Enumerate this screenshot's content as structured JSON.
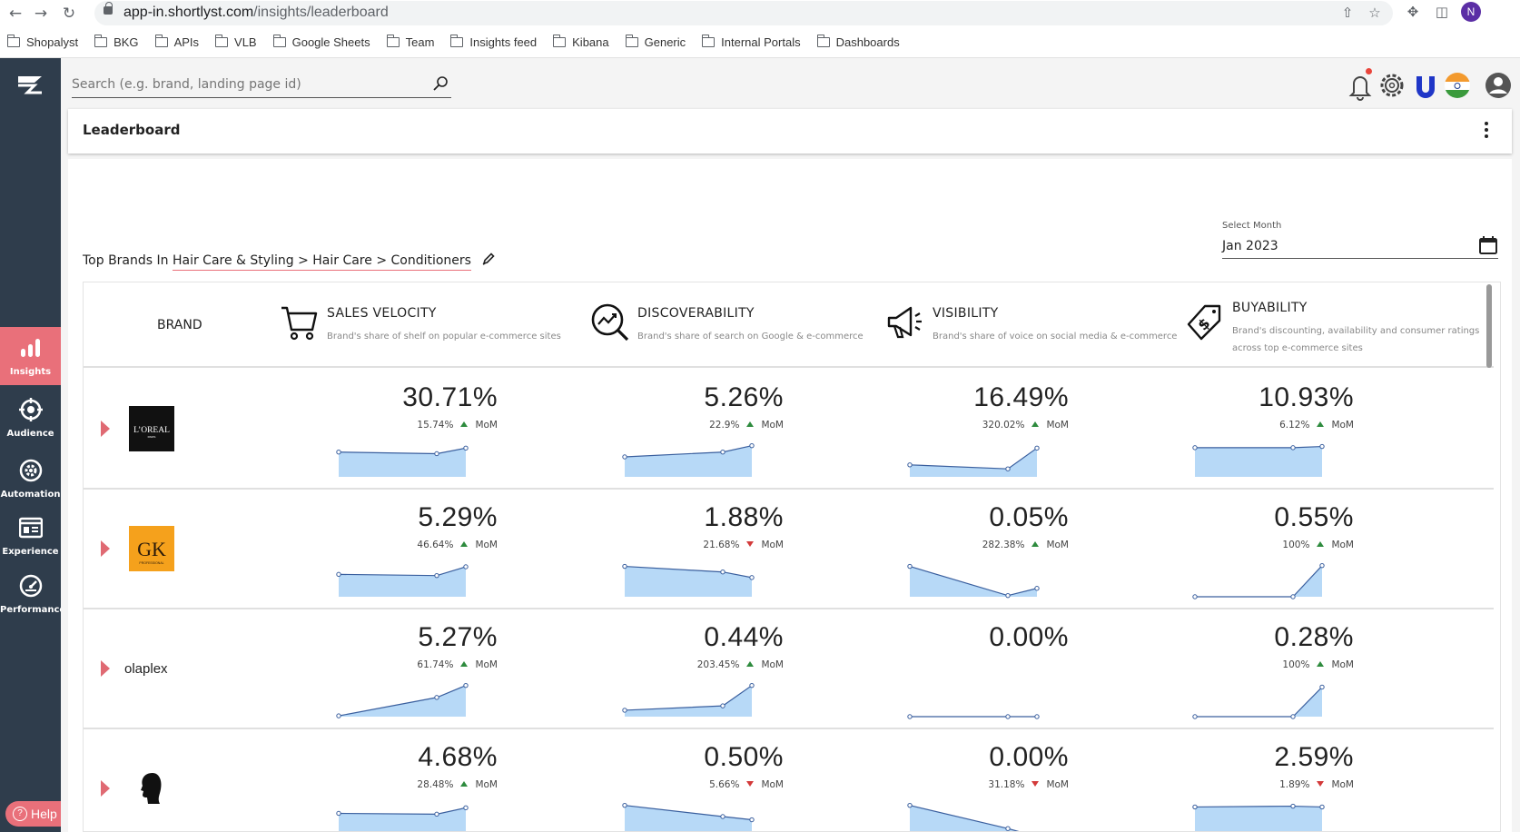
{
  "browser": {
    "url_domain": "app-in.shortlyst.com",
    "url_path": "/insights/leaderboard",
    "profile_initial": "N",
    "bookmarks": [
      "Shopalyst",
      "BKG",
      "APIs",
      "VLB",
      "Google Sheets",
      "Team",
      "Insights feed",
      "Kibana",
      "Generic",
      "Internal Portals",
      "Dashboards"
    ]
  },
  "sidebar": {
    "items": [
      {
        "label": "Insights",
        "icon": "bar-chart-icon",
        "active": true
      },
      {
        "label": "Audience",
        "icon": "target-icon",
        "active": false
      },
      {
        "label": "Automation",
        "icon": "gear-icon",
        "active": false
      },
      {
        "label": "Experience",
        "icon": "layout-icon",
        "active": false
      },
      {
        "label": "Performance",
        "icon": "speedometer-icon",
        "active": false
      }
    ],
    "help_label": "Help"
  },
  "topbar": {
    "search_placeholder": "Search (e.g. brand, landing page id)"
  },
  "page": {
    "title": "Leaderboard",
    "top_brands_prefix": "Top Brands In",
    "category_path": "Hair Care & Styling > Hair Care > Conditioners",
    "select_month_label": "Select Month",
    "selected_month": "Jan 2023"
  },
  "table": {
    "brand_header": "BRAND",
    "metrics": [
      {
        "title": "SALES VELOCITY",
        "desc": "Brand's share of shelf on popular e-commerce sites",
        "icon": "cart-icon"
      },
      {
        "title": "DISCOVERABILITY",
        "desc": "Brand's share of search on Google & e-commerce",
        "icon": "search-trend-icon"
      },
      {
        "title": "VISIBILITY",
        "desc": "Brand's share of voice on social media & e-commerce",
        "icon": "megaphone-icon"
      },
      {
        "title": "BUYABILITY",
        "desc": "Brand's discounting, availability and consumer ratings across top e-commerce sites",
        "icon": "price-tag-icon"
      }
    ],
    "rows": [
      {
        "brand": "L'OREAL",
        "logo": "loreal-logo",
        "cells": [
          {
            "value": "30.71%",
            "mom": "15.74%",
            "mom_label": "MoM",
            "trend": "up",
            "spark": [
              0.62,
              0.58,
              0.72
            ]
          },
          {
            "value": "5.26%",
            "mom": "22.9%",
            "mom_label": "MoM",
            "trend": "up",
            "spark": [
              0.5,
              0.62,
              0.78
            ]
          },
          {
            "value": "16.49%",
            "mom": "320.02%",
            "mom_label": "MoM",
            "trend": "up",
            "spark": [
              0.3,
              0.2,
              0.72
            ]
          },
          {
            "value": "10.93%",
            "mom": "6.12%",
            "mom_label": "MoM",
            "trend": "up",
            "spark": [
              0.73,
              0.73,
              0.76
            ]
          }
        ]
      },
      {
        "brand": "GK Hair",
        "logo": "gk-hair-logo",
        "cells": [
          {
            "value": "5.29%",
            "mom": "46.64%",
            "mom_label": "MoM",
            "trend": "up",
            "spark": [
              0.56,
              0.53,
              0.75
            ]
          },
          {
            "value": "1.88%",
            "mom": "21.68%",
            "mom_label": "MoM",
            "trend": "down",
            "spark": [
              0.76,
              0.62,
              0.48
            ]
          },
          {
            "value": "0.05%",
            "mom": "282.38%",
            "mom_label": "MoM",
            "trend": "up",
            "spark": [
              0.76,
              0.03,
              0.21
            ]
          },
          {
            "value": "0.55%",
            "mom": "100%",
            "mom_label": "MoM",
            "trend": "up",
            "spark": [
              0.0,
              0.0,
              0.78
            ]
          }
        ]
      },
      {
        "brand": "olaplex",
        "logo": "",
        "cells": [
          {
            "value": "5.27%",
            "mom": "61.74%",
            "mom_label": "MoM",
            "trend": "up",
            "spark": [
              0.02,
              0.48,
              0.78
            ]
          },
          {
            "value": "0.44%",
            "mom": "203.45%",
            "mom_label": "MoM",
            "trend": "up",
            "spark": [
              0.16,
              0.27,
              0.78
            ]
          },
          {
            "value": "0.00%",
            "mom": "",
            "mom_label": "",
            "trend": "",
            "spark": [
              0.0,
              0.0,
              0.0
            ]
          },
          {
            "value": "0.28%",
            "mom": "100%",
            "mom_label": "MoM",
            "trend": "up",
            "spark": [
              0.0,
              0.0,
              0.74
            ]
          }
        ]
      },
      {
        "brand": "",
        "logo": "silhouette-logo",
        "cells": [
          {
            "value": "4.68%",
            "mom": "28.48%",
            "mom_label": "MoM",
            "trend": "up",
            "spark": [
              0.58,
              0.56,
              0.72
            ]
          },
          {
            "value": "0.50%",
            "mom": "5.66%",
            "mom_label": "MoM",
            "trend": "down",
            "spark": [
              0.78,
              0.5,
              0.42
            ]
          },
          {
            "value": "0.00%",
            "mom": "31.18%",
            "mom_label": "MoM",
            "trend": "down",
            "spark": [
              0.78,
              0.2,
              0.0
            ]
          },
          {
            "value": "2.59%",
            "mom": "1.89%",
            "mom_label": "MoM",
            "trend": "down",
            "spark": [
              0.74,
              0.76,
              0.74
            ]
          }
        ]
      }
    ]
  },
  "colors": {
    "sidebar": "#2f3d4c",
    "accent": "#e9707a",
    "spark_fill": "#b7d9f7",
    "spark_line": "#3a5f9e",
    "up": "#2e8b3e",
    "down": "#d33a3a"
  }
}
